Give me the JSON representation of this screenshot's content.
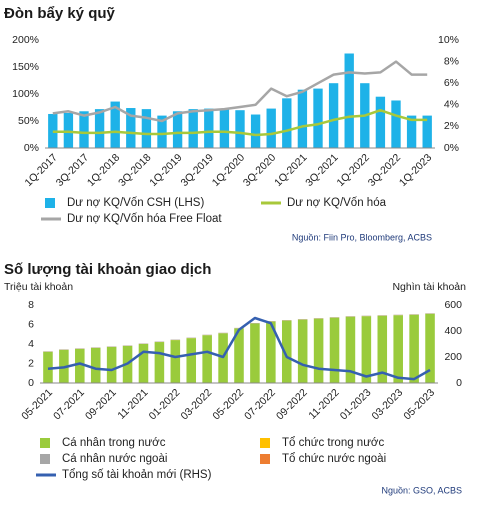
{
  "chart_data": [
    {
      "type": "bar",
      "title": "Đòn bẩy ký quỹ",
      "source": "Nguồn: Fiin Pro, Bloomberg, ACBS",
      "categories": [
        "1Q-2017",
        null,
        "3Q-2017",
        null,
        "1Q-2018",
        null,
        "3Q-2018",
        null,
        "1Q-2019",
        null,
        "3Q-2019",
        null,
        "1Q-2020",
        null,
        "3Q-2020",
        null,
        "1Q-2021",
        null,
        "3Q-2021",
        null,
        "1Q-2022",
        null,
        "3Q-2022",
        null,
        "1Q-2023"
      ],
      "series": [
        {
          "name": "Dư nợ KQ/Vốn CSH (LHS)",
          "type": "bar",
          "color": "#1eb2e8",
          "values": [
            63,
            65,
            68,
            72,
            86,
            74,
            72,
            60,
            68,
            72,
            73,
            72,
            70,
            62,
            73,
            92,
            108,
            110,
            120,
            175,
            120,
            95,
            88,
            60,
            60
          ]
        },
        {
          "name": "Dư nợ KQ/Vốn hóa",
          "type": "line",
          "axis": "y2",
          "color": "#a8c83a",
          "values": [
            1.5,
            1.5,
            1.4,
            1.4,
            1.5,
            1.4,
            1.3,
            1.3,
            1.4,
            1.4,
            1.5,
            1.5,
            1.4,
            1.2,
            1.3,
            1.6,
            2.0,
            2.2,
            2.6,
            2.9,
            3.0,
            3.5,
            3.0,
            2.6,
            2.6
          ]
        },
        {
          "name": "Dư nợ KQ/Vốn hóa Free Float",
          "type": "line",
          "axis": "y2",
          "color": "#a6a6a6",
          "values": [
            3.2,
            3.4,
            3.0,
            3.3,
            3.8,
            3.0,
            2.8,
            2.5,
            3.2,
            3.4,
            3.5,
            3.6,
            3.8,
            4.0,
            5.5,
            4.8,
            5.2,
            6.0,
            6.8,
            7.0,
            6.9,
            7.0,
            8.0,
            6.8,
            6.8
          ]
        }
      ],
      "ylim": [
        0,
        200
      ],
      "yticks": [
        {
          "value": 0,
          "label": "0%"
        },
        {
          "value": 50,
          "label": "50%"
        },
        {
          "value": 100,
          "label": "100%"
        },
        {
          "value": 150,
          "label": "150%"
        },
        {
          "value": 200,
          "label": "200%"
        }
      ],
      "y2lim": [
        0,
        10
      ],
      "y2ticks": [
        {
          "value": 0,
          "label": "0%"
        },
        {
          "value": 2,
          "label": "2%"
        },
        {
          "value": 4,
          "label": "4%"
        },
        {
          "value": 6,
          "label": "6%"
        },
        {
          "value": 8,
          "label": "8%"
        },
        {
          "value": 10,
          "label": "10%"
        }
      ],
      "grid": false
    },
    {
      "type": "bar",
      "title": "Số lượng tài khoản giao dịch",
      "ylabel": "Triệu tài khoản",
      "y2label": "Nghìn tài khoản",
      "source": "Nguồn: GSO, ACBS",
      "categories": [
        "05-2021",
        null,
        "07-2021",
        null,
        "09-2021",
        null,
        "11-2021",
        null,
        "01-2022",
        null,
        "03-2022",
        null,
        "05-2022",
        null,
        "07-2022",
        null,
        "09-2022",
        null,
        "11-2022",
        null,
        "01-2023",
        null,
        "03-2023",
        null,
        "05-2023"
      ],
      "series": [
        {
          "name": "Cá nhân trong nước",
          "type": "bar",
          "color": "#9acb3c",
          "values": [
            3.2,
            3.4,
            3.5,
            3.6,
            3.7,
            3.8,
            4.0,
            4.2,
            4.4,
            4.6,
            4.9,
            5.1,
            5.6,
            6.1,
            6.3,
            6.4,
            6.5,
            6.6,
            6.7,
            6.8,
            6.85,
            6.9,
            6.95,
            7.0,
            7.1
          ]
        },
        {
          "name": "Tổ chức trong nước",
          "type": "bar",
          "color": "#ffc000",
          "values": [
            0.01,
            0.01,
            0.01,
            0.01,
            0.01,
            0.01,
            0.01,
            0.01,
            0.01,
            0.01,
            0.01,
            0.01,
            0.01,
            0.01,
            0.01,
            0.01,
            0.01,
            0.01,
            0.01,
            0.01,
            0.01,
            0.01,
            0.01,
            0.01,
            0.01
          ]
        },
        {
          "name": "Cá nhân nước ngoài",
          "type": "bar",
          "color": "#a6a6a6",
          "values": [
            0.04,
            0.04,
            0.04,
            0.04,
            0.04,
            0.04,
            0.04,
            0.04,
            0.04,
            0.04,
            0.04,
            0.04,
            0.04,
            0.04,
            0.04,
            0.04,
            0.04,
            0.04,
            0.04,
            0.04,
            0.04,
            0.04,
            0.04,
            0.04,
            0.04
          ]
        },
        {
          "name": "Tổ chức nước ngoài",
          "type": "bar",
          "color": "#ed7d31",
          "values": [
            0.005,
            0.005,
            0.005,
            0.005,
            0.005,
            0.005,
            0.005,
            0.005,
            0.005,
            0.005,
            0.005,
            0.005,
            0.005,
            0.005,
            0.005,
            0.005,
            0.005,
            0.005,
            0.005,
            0.005,
            0.005,
            0.005,
            0.005,
            0.005,
            0.005
          ]
        },
        {
          "name": "Tổng số tài khoản mới (RHS)",
          "type": "line",
          "axis": "y2",
          "color": "#3560b0",
          "values": [
            110,
            120,
            150,
            110,
            100,
            150,
            240,
            230,
            200,
            220,
            240,
            200,
            410,
            500,
            460,
            200,
            140,
            110,
            100,
            90,
            50,
            80,
            40,
            30,
            100
          ]
        }
      ],
      "ylim": [
        0,
        8
      ],
      "yticks": [
        0,
        2,
        4,
        6,
        8
      ],
      "y2lim": [
        0,
        600
      ],
      "y2ticks": [
        0,
        200,
        400,
        600
      ],
      "grid": false
    }
  ]
}
